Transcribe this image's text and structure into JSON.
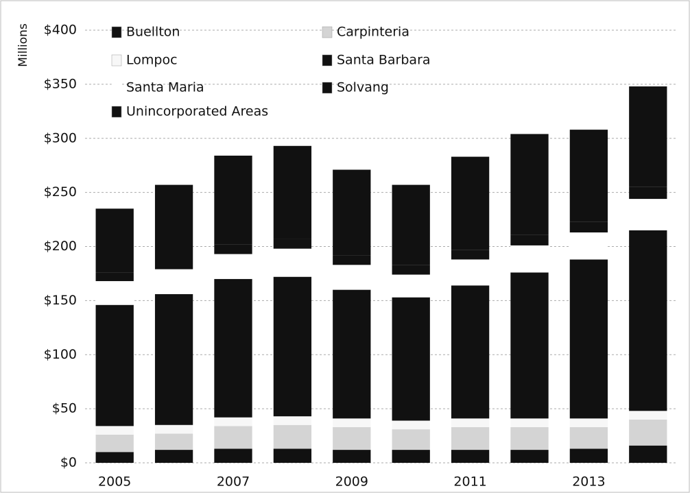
{
  "chart_data": {
    "type": "stacked_bar",
    "y_axis_label": "Millions",
    "categories": [
      "2005",
      null,
      "2007",
      null,
      "2009",
      null,
      "2011",
      null,
      "2013",
      null
    ],
    "series": [
      {
        "name": "Buellton",
        "color": "#111111",
        "values": [
          10,
          12,
          13,
          13,
          12,
          12,
          12,
          12,
          13,
          16
        ]
      },
      {
        "name": "Carpinteria",
        "color": "#d4d4d4",
        "values": [
          16,
          15,
          21,
          22,
          21,
          19,
          21,
          21,
          20,
          24
        ]
      },
      {
        "name": "Lompoc",
        "color": "#f7f7f7",
        "values": [
          8,
          8,
          8,
          8,
          8,
          8,
          8,
          8,
          8,
          8
        ]
      },
      {
        "name": "Santa Barbara",
        "color": "#111111",
        "values": [
          112,
          121,
          128,
          129,
          119,
          114,
          123,
          135,
          147,
          167
        ]
      },
      {
        "name": "Santa Maria",
        "color": "#ffffff",
        "values": [
          22,
          23,
          23,
          26,
          23,
          21,
          24,
          25,
          25,
          29
        ]
      },
      {
        "name": "Solvang",
        "color": "#111111",
        "values": [
          8,
          8,
          9,
          9,
          9,
          9,
          9,
          10,
          10,
          11
        ]
      },
      {
        "name": "Unincorporated Areas",
        "color": "#111111",
        "values": [
          59,
          70,
          82,
          86,
          79,
          74,
          86,
          93,
          85,
          93
        ]
      }
    ],
    "ylim": [
      0,
      400
    ],
    "yticks": [
      {
        "value": 0,
        "label": "$0"
      },
      {
        "value": 50,
        "label": "$50"
      },
      {
        "value": 100,
        "label": "$100"
      },
      {
        "value": 150,
        "label": "$150"
      },
      {
        "value": 200,
        "label": "$200"
      },
      {
        "value": 250,
        "label": "$250"
      },
      {
        "value": 300,
        "label": "$300"
      },
      {
        "value": 350,
        "label": "$350"
      },
      {
        "value": 400,
        "label": "$400"
      }
    ],
    "grid": true,
    "legend": "top-left"
  }
}
